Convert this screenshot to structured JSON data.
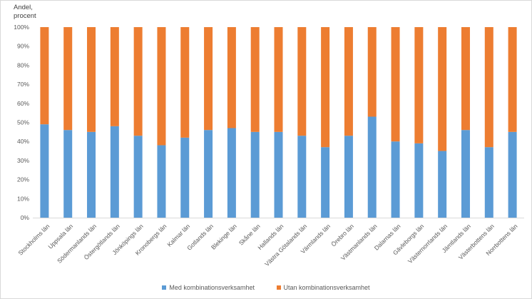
{
  "chart_data": {
    "type": "bar",
    "stacked": true,
    "title": "",
    "ylabel_lines": [
      "Andel,",
      "procent"
    ],
    "ylim": [
      0,
      100
    ],
    "y_ticks": [
      "0%",
      "10%",
      "20%",
      "30%",
      "40%",
      "50%",
      "60%",
      "70%",
      "80%",
      "90%",
      "100%"
    ],
    "grid": false,
    "legend_position": "bottom",
    "categories": [
      "Stockholms län",
      "Uppsala län",
      "Södermanlands län",
      "Östergötlands län",
      "Jönköpings län",
      "Kronobergs län",
      "Kalmar län",
      "Gotlands län",
      "Blekinge län",
      "Skåne län",
      "Hallands län",
      "Västra Götalands län",
      "Värmlands län",
      "Örebro län",
      "Västmanlands län",
      "Dalarnas län",
      "Gävleborgs län",
      "Västernorrlands län",
      "Jämtlands län",
      "Västerbottens län",
      "Norrbottens län"
    ],
    "series": [
      {
        "name": "Med kombinationsverksamhet",
        "color": "#5b9bd5",
        "values": [
          49,
          46,
          45,
          48,
          43,
          38,
          42,
          46,
          47,
          45,
          45,
          43,
          37,
          43,
          53,
          40,
          39,
          35,
          46,
          37,
          45
        ]
      },
      {
        "name": "Utan kombinationsverksamhet",
        "color": "#ed7d31",
        "values": [
          51,
          54,
          55,
          52,
          57,
          62,
          58,
          54,
          53,
          55,
          55,
          57,
          63,
          57,
          47,
          60,
          61,
          65,
          54,
          63,
          55
        ]
      }
    ]
  }
}
